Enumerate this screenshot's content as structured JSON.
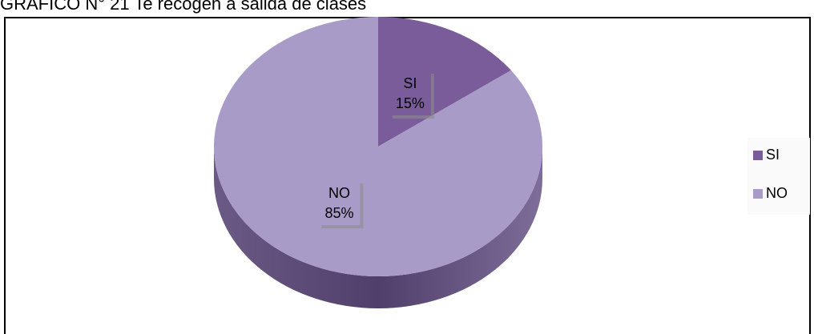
{
  "chart_data": {
    "type": "pie",
    "title": "GRÁFICO N° 21 Te recogen a salida de clases",
    "categories": [
      "SI",
      "NO"
    ],
    "values": [
      15,
      85
    ],
    "value_labels": [
      "15%",
      "85%"
    ],
    "colors": [
      "#7b5c9a",
      "#a99bc7"
    ],
    "legend": "right"
  }
}
